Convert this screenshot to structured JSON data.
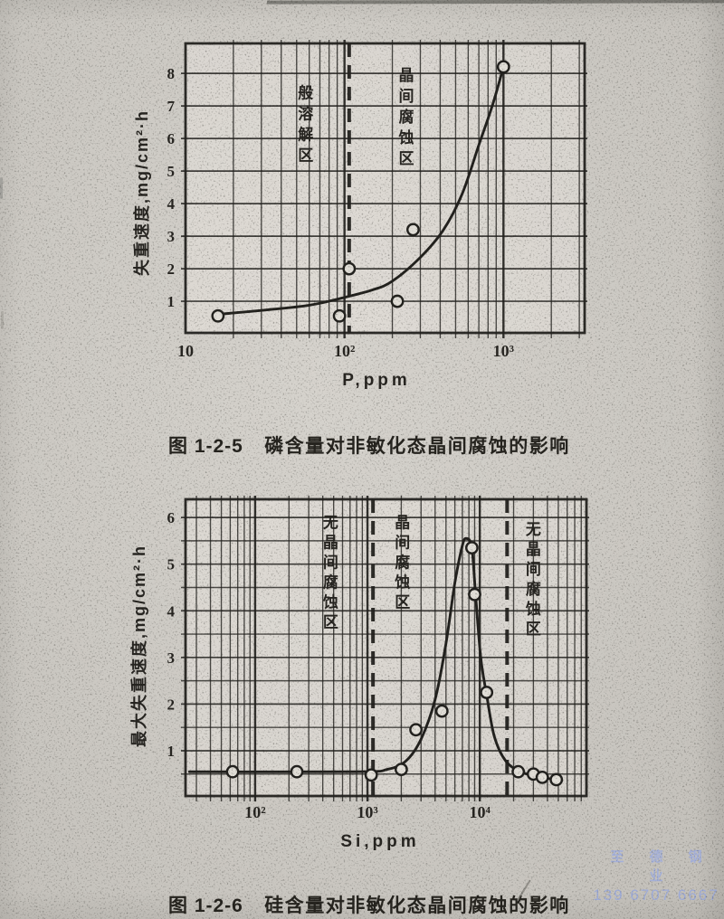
{
  "page": {
    "watermark": {
      "line1": "至 德 钢 业",
      "line2": "139 6707 6667",
      "color": "#9fadde"
    },
    "colors": {
      "paper": "#cdcac4",
      "ink": "#1c1b18"
    }
  },
  "chart_data": [
    {
      "type": "line",
      "figure": "图 1-2-5",
      "caption": "磷含量对非敏化态晶间腐蚀的影响",
      "xlabel": "P,ppm",
      "ylabel": "失重速度,mg/cm²·h",
      "x_scale": "log",
      "grid": "log-paper",
      "legend": "none",
      "x_domain": [
        10,
        3240
      ],
      "y_domain": [
        0.03,
        8.92
      ],
      "x_ticks": [
        {
          "value": 10,
          "label": "10"
        },
        {
          "value": 100,
          "label": "10²"
        },
        {
          "value": 1000,
          "label": "10³"
        }
      ],
      "y_ticks": [
        1,
        2,
        3,
        4,
        5,
        6,
        7,
        8
      ],
      "y_minor_step": 0,
      "dashed_boundaries": [
        107
      ],
      "regions": [
        {
          "label": "般溶解区",
          "x": 57,
          "y_top": 7.4
        },
        {
          "label": "晶间腐蚀区",
          "x": 245,
          "y_top": 7.95
        }
      ],
      "points": [
        [
          16,
          0.55
        ],
        [
          93,
          0.55
        ],
        [
          107,
          2.0
        ],
        [
          215,
          1.0
        ],
        [
          270,
          3.2
        ],
        [
          1000,
          8.2
        ]
      ],
      "curve": [
        [
          16,
          0.6
        ],
        [
          30,
          0.72
        ],
        [
          60,
          0.88
        ],
        [
          100,
          1.12
        ],
        [
          150,
          1.35
        ],
        [
          200,
          1.62
        ],
        [
          300,
          2.35
        ],
        [
          420,
          3.2
        ],
        [
          550,
          4.3
        ],
        [
          700,
          5.8
        ],
        [
          850,
          7.0
        ],
        [
          1000,
          8.2
        ]
      ]
    },
    {
      "type": "line",
      "figure": "图 1-2-6",
      "caption": "硅含量对非敏化态晶间腐蚀的影响",
      "xlabel": "Si,ppm",
      "ylabel": "最大失重速度,mg/cm²·h",
      "x_scale": "log",
      "grid": "log-paper",
      "legend": "none",
      "x_domain": [
        24,
        89000
      ],
      "y_domain": [
        0.03,
        6.39
      ],
      "x_ticks": [
        {
          "value": 100,
          "label": "10²"
        },
        {
          "value": 1000,
          "label": "10³"
        },
        {
          "value": 10000,
          "label": "10⁴"
        }
      ],
      "y_ticks": [
        1,
        2,
        3,
        4,
        5,
        6
      ],
      "y_minor_step": 0.5,
      "dashed_boundaries": [
        1120,
        17500
      ],
      "regions": [
        {
          "label": "无晶间腐蚀区",
          "x": 470,
          "y_top": 5.9
        },
        {
          "label": "晶间腐蚀区",
          "x": 2050,
          "y_top": 5.9
        },
        {
          "label": "无晶间腐蚀区",
          "x": 30000,
          "y_top": 5.75
        }
      ],
      "points": [
        [
          63,
          0.55
        ],
        [
          235,
          0.55
        ],
        [
          1080,
          0.48
        ],
        [
          2000,
          0.6
        ],
        [
          2700,
          1.45
        ],
        [
          4600,
          1.85
        ],
        [
          8500,
          5.35
        ],
        [
          9000,
          4.35
        ],
        [
          11500,
          2.25
        ],
        [
          22000,
          0.55
        ],
        [
          30000,
          0.5
        ],
        [
          36000,
          0.43
        ],
        [
          48000,
          0.38
        ]
      ],
      "curve": [
        [
          26,
          0.55
        ],
        [
          800,
          0.55
        ],
        [
          1500,
          0.6
        ],
        [
          2200,
          0.78
        ],
        [
          3000,
          1.25
        ],
        [
          4000,
          2.1
        ],
        [
          5000,
          3.3
        ],
        [
          6000,
          4.6
        ],
        [
          7000,
          5.4
        ],
        [
          7600,
          5.55
        ],
        [
          8500,
          5.35
        ],
        [
          9200,
          4.3
        ],
        [
          10200,
          3.0
        ],
        [
          11500,
          2.2
        ],
        [
          13500,
          1.3
        ],
        [
          17000,
          0.78
        ],
        [
          23000,
          0.55
        ],
        [
          32000,
          0.45
        ],
        [
          42000,
          0.4
        ]
      ]
    }
  ]
}
